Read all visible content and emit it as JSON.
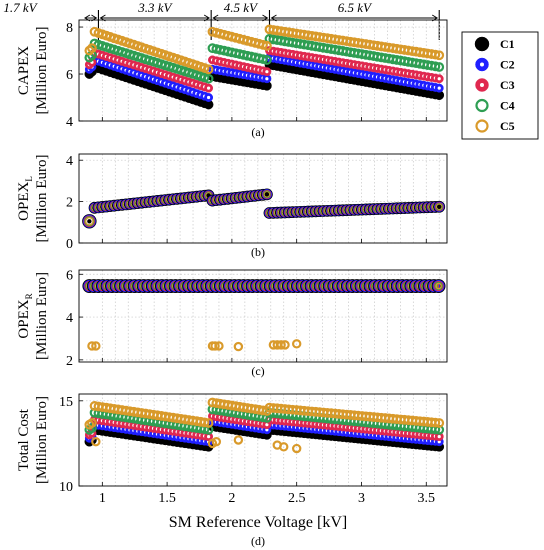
{
  "figure": {
    "voltage_ranges": [
      {
        "label": "1.7 kV",
        "from": 0.85,
        "to": 0.97
      },
      {
        "label": "3.3 kV",
        "from": 0.97,
        "to": 1.84
      },
      {
        "label": "4.5 kV",
        "from": 1.84,
        "to": 2.29
      },
      {
        "label": "6.5 kV",
        "from": 2.29,
        "to": 3.6
      }
    ],
    "xlabel": "SM Reference Voltage [kV]",
    "legend": {
      "placement": "top-right",
      "entries": [
        "C1",
        "C2",
        "C3",
        "C4",
        "C5"
      ]
    }
  },
  "chart_data": [
    {
      "type": "scatter",
      "panel_label": "(a)",
      "ylabel_line1": "CAPEX",
      "ylabel_sub": "",
      "ylabel_line2": "[Million Euro]",
      "xlim": [
        0.82,
        3.66
      ],
      "ylim": [
        4,
        8.3
      ],
      "yticks": [
        4,
        6,
        8
      ],
      "xticks": [
        1,
        1.5,
        2,
        2.5,
        3,
        3.5
      ],
      "xticklabels": [],
      "grid": true,
      "series": [
        {
          "name": "C1",
          "segments": [
            {
              "x0": 0.9,
              "x1": 0.92,
              "v0": 6.0,
              "v1": 6.1
            },
            {
              "x0": 0.94,
              "x1": 1.82,
              "v0": 6.3,
              "v1": 4.7
            },
            {
              "x0": 1.85,
              "x1": 2.27,
              "v0": 5.9,
              "v1": 5.5
            },
            {
              "x0": 2.29,
              "x1": 3.6,
              "v0": 6.4,
              "v1": 5.1
            }
          ]
        },
        {
          "name": "C2",
          "segments": [
            {
              "x0": 0.9,
              "x1": 0.92,
              "v0": 6.2,
              "v1": 6.3
            },
            {
              "x0": 0.94,
              "x1": 1.82,
              "v0": 6.6,
              "v1": 5.0
            },
            {
              "x0": 1.85,
              "x1": 2.27,
              "v0": 6.2,
              "v1": 5.8
            },
            {
              "x0": 2.29,
              "x1": 3.6,
              "v0": 6.7,
              "v1": 5.4
            }
          ]
        },
        {
          "name": "C3",
          "segments": [
            {
              "x0": 0.9,
              "x1": 0.92,
              "v0": 6.4,
              "v1": 6.5
            },
            {
              "x0": 0.94,
              "x1": 1.82,
              "v0": 6.9,
              "v1": 5.4
            },
            {
              "x0": 1.85,
              "x1": 2.27,
              "v0": 6.6,
              "v1": 6.1
            },
            {
              "x0": 2.29,
              "x1": 3.6,
              "v0": 7.0,
              "v1": 5.8
            }
          ]
        },
        {
          "name": "C4",
          "segments": [
            {
              "x0": 0.9,
              "x1": 0.92,
              "v0": 6.7,
              "v1": 6.8
            },
            {
              "x0": 0.94,
              "x1": 1.82,
              "v0": 7.3,
              "v1": 5.8
            },
            {
              "x0": 1.85,
              "x1": 2.27,
              "v0": 7.1,
              "v1": 6.6
            },
            {
              "x0": 2.29,
              "x1": 3.6,
              "v0": 7.5,
              "v1": 6.3
            }
          ]
        },
        {
          "name": "C5",
          "segments": [
            {
              "x0": 0.9,
              "x1": 0.92,
              "v0": 7.0,
              "v1": 7.1
            },
            {
              "x0": 0.94,
              "x1": 1.82,
              "v0": 7.8,
              "v1": 6.2
            },
            {
              "x0": 1.85,
              "x1": 2.27,
              "v0": 7.8,
              "v1": 7.2
            },
            {
              "x0": 2.29,
              "x1": 3.6,
              "v0": 7.9,
              "v1": 6.8
            }
          ]
        }
      ]
    },
    {
      "type": "scatter",
      "panel_label": "(b)",
      "ylabel_line1": "OPEX",
      "ylabel_sub": "L",
      "ylabel_line2": "[Million Euro]",
      "xlim": [
        0.82,
        3.66
      ],
      "ylim": [
        0,
        4.3
      ],
      "yticks": [
        0,
        2,
        4
      ],
      "xticks": [
        1,
        1.5,
        2,
        2.5,
        3,
        3.5
      ],
      "xticklabels": [],
      "grid": true,
      "shared_all_series": true,
      "segments": [
        {
          "x0": 0.9,
          "x1": 0.9,
          "v0": 1.05,
          "v1": 1.05
        },
        {
          "x0": 0.94,
          "x1": 1.82,
          "v0": 1.7,
          "v1": 2.3
        },
        {
          "x0": 1.85,
          "x1": 2.27,
          "v0": 2.05,
          "v1": 2.35
        },
        {
          "x0": 2.29,
          "x1": 3.6,
          "v0": 1.45,
          "v1": 1.75
        }
      ]
    },
    {
      "type": "scatter",
      "panel_label": "(c)",
      "ylabel_line1": "OPEX",
      "ylabel_sub": "R",
      "ylabel_line2": "[Million Euro]",
      "xlim": [
        0.82,
        3.66
      ],
      "ylim": [
        1.9,
        6.2
      ],
      "yticks": [
        2,
        4,
        6
      ],
      "xticks": [
        1,
        1.5,
        2,
        2.5,
        3,
        3.5
      ],
      "xticklabels": [],
      "grid": true,
      "shared_value": 5.45,
      "main_x_range": [
        0.9,
        3.6
      ],
      "c5_outliers": [
        {
          "x": 0.92,
          "y": 2.65
        },
        {
          "x": 0.95,
          "y": 2.65
        },
        {
          "x": 1.85,
          "y": 2.65
        },
        {
          "x": 1.87,
          "y": 2.65
        },
        {
          "x": 1.9,
          "y": 2.65
        },
        {
          "x": 2.05,
          "y": 2.62
        },
        {
          "x": 2.32,
          "y": 2.7
        },
        {
          "x": 2.35,
          "y": 2.7
        },
        {
          "x": 2.38,
          "y": 2.7
        },
        {
          "x": 2.41,
          "y": 2.7
        },
        {
          "x": 2.5,
          "y": 2.75
        }
      ]
    },
    {
      "type": "scatter",
      "panel_label": "(d)",
      "ylabel_line1": "Total Cost",
      "ylabel_sub": "",
      "ylabel_line2": "[Million Euro]",
      "xlim": [
        0.82,
        3.66
      ],
      "ylim": [
        10,
        15.4
      ],
      "yticks": [
        10,
        15
      ],
      "xticks": [
        1,
        1.5,
        2,
        2.5,
        3,
        3.5
      ],
      "xticklabels": [
        "1",
        "1.5",
        "2",
        "2.5",
        "3",
        "3.5"
      ],
      "grid": true,
      "series": [
        {
          "name": "C1",
          "segments": [
            {
              "x0": 0.9,
              "x1": 0.92,
              "v0": 12.6,
              "v1": 12.7
            },
            {
              "x0": 0.94,
              "x1": 1.82,
              "v0": 13.3,
              "v1": 12.3
            },
            {
              "x0": 1.85,
              "x1": 2.27,
              "v0": 13.5,
              "v1": 13.0
            },
            {
              "x0": 2.29,
              "x1": 3.6,
              "v0": 13.3,
              "v1": 12.3
            }
          ]
        },
        {
          "name": "C2",
          "segments": [
            {
              "x0": 0.9,
              "x1": 0.92,
              "v0": 12.8,
              "v1": 12.9
            },
            {
              "x0": 0.94,
              "x1": 1.82,
              "v0": 13.6,
              "v1": 12.6
            },
            {
              "x0": 1.85,
              "x1": 2.27,
              "v0": 13.8,
              "v1": 13.3
            },
            {
              "x0": 2.29,
              "x1": 3.6,
              "v0": 13.6,
              "v1": 12.6
            }
          ]
        },
        {
          "name": "C3",
          "segments": [
            {
              "x0": 0.9,
              "x1": 0.92,
              "v0": 13.0,
              "v1": 13.1
            },
            {
              "x0": 0.94,
              "x1": 1.82,
              "v0": 13.9,
              "v1": 12.9
            },
            {
              "x0": 1.85,
              "x1": 2.27,
              "v0": 14.1,
              "v1": 13.6
            },
            {
              "x0": 2.29,
              "x1": 3.6,
              "v0": 13.9,
              "v1": 12.9
            }
          ]
        },
        {
          "name": "C4",
          "segments": [
            {
              "x0": 0.9,
              "x1": 0.92,
              "v0": 13.3,
              "v1": 13.4
            },
            {
              "x0": 0.94,
              "x1": 1.82,
              "v0": 14.3,
              "v1": 13.3
            },
            {
              "x0": 1.85,
              "x1": 2.27,
              "v0": 14.5,
              "v1": 14.0
            },
            {
              "x0": 2.29,
              "x1": 3.6,
              "v0": 14.3,
              "v1": 13.3
            }
          ]
        },
        {
          "name": "C5",
          "segments": [
            {
              "x0": 0.9,
              "x1": 0.92,
              "v0": 13.6,
              "v1": 13.7
            },
            {
              "x0": 0.94,
              "x1": 1.82,
              "v0": 14.7,
              "v1": 13.7
            },
            {
              "x0": 1.85,
              "x1": 2.27,
              "v0": 14.9,
              "v1": 14.4
            },
            {
              "x0": 2.29,
              "x1": 3.6,
              "v0": 14.6,
              "v1": 13.7
            }
          ]
        }
      ],
      "c5_outliers": [
        {
          "x": 0.95,
          "y": 12.6
        },
        {
          "x": 1.85,
          "y": 12.5
        },
        {
          "x": 1.88,
          "y": 12.6
        },
        {
          "x": 2.05,
          "y": 12.7
        },
        {
          "x": 2.35,
          "y": 12.4
        },
        {
          "x": 2.4,
          "y": 12.3
        },
        {
          "x": 2.5,
          "y": 12.2
        }
      ]
    }
  ],
  "colors": {
    "C1": "#000000",
    "C2": "#1f1fff",
    "C3": "#e0284f",
    "C4": "#2e9e53",
    "C5": "#d99a2b"
  }
}
